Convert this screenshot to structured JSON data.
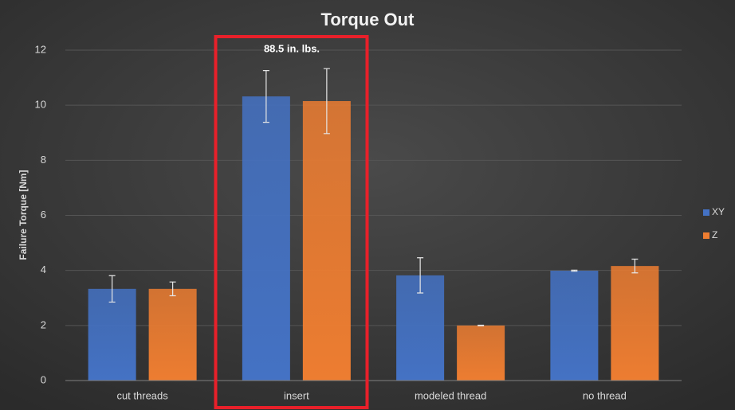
{
  "chart_data": {
    "type": "bar",
    "title": "Torque Out",
    "y_label": "Failure Torque [Nm]",
    "annotation": "88.5 in. lbs.",
    "categories": [
      "cut threads",
      "insert",
      "modeled thread",
      "no thread"
    ],
    "series": [
      {
        "name": "XY",
        "color": "#4472c4",
        "values": [
          3.33,
          10.32,
          3.82,
          3.99
        ],
        "errors": [
          0.48,
          0.94,
          0.64,
          0.02
        ]
      },
      {
        "name": "Z",
        "color": "#ed7d31",
        "values": [
          3.33,
          10.15,
          2.0,
          4.16
        ],
        "errors": [
          0.25,
          1.18,
          0.01,
          0.25
        ]
      }
    ],
    "ylim": [
      0,
      12
    ],
    "yticks": [
      0,
      2,
      4,
      6,
      8,
      10,
      12
    ],
    "grid": true,
    "legend": "right"
  }
}
